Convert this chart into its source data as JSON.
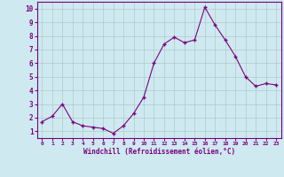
{
  "x": [
    0,
    1,
    2,
    3,
    4,
    5,
    6,
    7,
    8,
    9,
    10,
    11,
    12,
    13,
    14,
    15,
    16,
    17,
    18,
    19,
    20,
    21,
    22,
    23
  ],
  "y": [
    1.7,
    2.1,
    3.0,
    1.7,
    1.4,
    1.3,
    1.2,
    0.85,
    1.4,
    2.3,
    3.5,
    6.0,
    7.4,
    7.9,
    7.5,
    7.7,
    10.1,
    8.8,
    7.7,
    6.5,
    5.0,
    4.3,
    4.5,
    4.4
  ],
  "line_color": "#7b0080",
  "marker_color": "#7b0080",
  "bg_color": "#ceeaf0",
  "grid_color": "#b0c8cc",
  "xlabel": "Windchill (Refroidissement éolien,°C)",
  "ylabel_ticks": [
    1,
    2,
    3,
    4,
    5,
    6,
    7,
    8,
    9,
    10
  ],
  "xlim": [
    -0.5,
    23.5
  ],
  "ylim": [
    0.5,
    10.5
  ],
  "xlabel_color": "#7b0080",
  "tick_color": "#7b0080",
  "spine_color": "#7b0080",
  "figsize": [
    3.2,
    2.0
  ],
  "dpi": 100
}
